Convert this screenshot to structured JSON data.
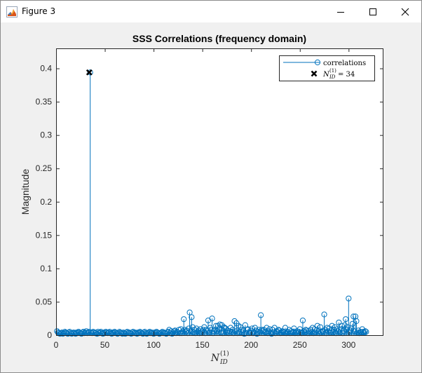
{
  "window": {
    "title": "Figure 3",
    "icons": {
      "app": "matlab-figure-icon",
      "minimize": "minimize-icon",
      "maximize": "maximize-icon",
      "close": "close-icon"
    }
  },
  "chart_data": {
    "type": "stem",
    "title": "SSS Correlations (frequency domain)",
    "ylabel": "Magnitude",
    "xlabel_base": "N",
    "xlabel_sup": "(1)",
    "xlabel_sub": "ID",
    "xlim": [
      0,
      335
    ],
    "ylim": [
      0,
      0.43
    ],
    "xticks": [
      0,
      50,
      100,
      150,
      200,
      250,
      300
    ],
    "yticks": [
      0,
      0.05,
      0.1,
      0.15,
      0.2,
      0.25,
      0.3,
      0.35,
      0.4
    ],
    "ytick_labels": [
      "0",
      "0.05",
      "0.1",
      "0.15",
      "0.2",
      "0.25",
      "0.3",
      "0.35",
      "0.4"
    ],
    "series_color": "#0072BD",
    "values": [
      0.006,
      0.004,
      0.003,
      0.002,
      0.003,
      0.004,
      0.002,
      0.003,
      0.005,
      0.004,
      0.003,
      0.002,
      0.004,
      0.005,
      0.003,
      0.002,
      0.003,
      0.004,
      0.003,
      0.002,
      0.004,
      0.003,
      0.005,
      0.004,
      0.003,
      0.002,
      0.004,
      0.005,
      0.003,
      0.004,
      0.006,
      0.003,
      0.004,
      0.005,
      0.394,
      0.004,
      0.003,
      0.005,
      0.004,
      0.003,
      0.004,
      0.002,
      0.005,
      0.003,
      0.004,
      0.005,
      0.003,
      0.002,
      0.004,
      0.003,
      0.005,
      0.004,
      0.003,
      0.004,
      0.005,
      0.003,
      0.002,
      0.004,
      0.003,
      0.005,
      0.004,
      0.003,
      0.002,
      0.003,
      0.005,
      0.004,
      0.003,
      0.002,
      0.004,
      0.003,
      0.002,
      0.004,
      0.005,
      0.003,
      0.004,
      0.003,
      0.002,
      0.004,
      0.005,
      0.003,
      0.004,
      0.003,
      0.002,
      0.004,
      0.003,
      0.005,
      0.004,
      0.003,
      0.002,
      0.004,
      0.005,
      0.003,
      0.002,
      0.003,
      0.004,
      0.005,
      0.003,
      0.004,
      0.003,
      0.002,
      0.004,
      0.003,
      0.005,
      0.004,
      0.003,
      0.002,
      0.003,
      0.004,
      0.005,
      0.003,
      0.004,
      0.003,
      0.002,
      0.004,
      0.005,
      0.008,
      0.003,
      0.006,
      0.002,
      0.004,
      0.006,
      0.007,
      0.003,
      0.005,
      0.004,
      0.008,
      0.003,
      0.009,
      0.003,
      0.006,
      0.024,
      0.008,
      0.005,
      0.007,
      0.003,
      0.01,
      0.034,
      0.006,
      0.027,
      0.012,
      0.004,
      0.008,
      0.003,
      0.01,
      0.005,
      0.007,
      0.003,
      0.009,
      0.004,
      0.006,
      0.008,
      0.012,
      0.003,
      0.008,
      0.006,
      0.022,
      0.004,
      0.011,
      0.008,
      0.025,
      0.003,
      0.006,
      0.008,
      0.014,
      0.006,
      0.014,
      0.009,
      0.016,
      0.004,
      0.015,
      0.003,
      0.012,
      0.011,
      0.01,
      0.004,
      0.007,
      0.003,
      0.006,
      0.011,
      0.005,
      0.008,
      0.003,
      0.021,
      0.006,
      0.018,
      0.003,
      0.014,
      0.004,
      0.012,
      0.008,
      0.004,
      0.007,
      0.002,
      0.015,
      0.003,
      0.008,
      0.009,
      0.003,
      0.004,
      0.007,
      0.01,
      0.003,
      0.004,
      0.011,
      0.007,
      0.002,
      0.005,
      0.008,
      0.005,
      0.03,
      0.008,
      0.006,
      0.008,
      0.005,
      0.004,
      0.011,
      0.003,
      0.006,
      0.009,
      0.004,
      0.002,
      0.008,
      0.004,
      0.011,
      0.003,
      0.006,
      0.005,
      0.008,
      0.007,
      0.003,
      0.004,
      0.006,
      0.005,
      0.004,
      0.011,
      0.003,
      0.005,
      0.004,
      0.008,
      0.003,
      0.006,
      0.004,
      0.005,
      0.01,
      0.003,
      0.004,
      0.006,
      0.003,
      0.005,
      0.009,
      0.004,
      0.003,
      0.022,
      0.006,
      0.004,
      0.008,
      0.007,
      0.003,
      0.006,
      0.003,
      0.008,
      0.004,
      0.011,
      0.003,
      0.009,
      0.004,
      0.007,
      0.014,
      0.006,
      0.003,
      0.012,
      0.004,
      0.006,
      0.005,
      0.031,
      0.008,
      0.003,
      0.011,
      0.006,
      0.01,
      0.004,
      0.007,
      0.014,
      0.004,
      0.008,
      0.012,
      0.003,
      0.009,
      0.006,
      0.019,
      0.004,
      0.009,
      0.014,
      0.003,
      0.006,
      0.015,
      0.024,
      0.008,
      0.012,
      0.055,
      0.005,
      0.007,
      0.01,
      0.017,
      0.028,
      0.006,
      0.028,
      0.021,
      0.004,
      0.007,
      0.003,
      0.005,
      0.004,
      0.009,
      0.005,
      0.004,
      0.006,
      0.005
    ],
    "marker_index": 34,
    "marker_value": 0.394,
    "legend": {
      "location": "top-right",
      "entries": [
        {
          "label": "correlations",
          "marker": "circle"
        },
        {
          "label_base": "N",
          "label_sup": "(1)",
          "label_sub": "ID",
          "label_suffix": " = 34",
          "marker": "cross"
        }
      ]
    },
    "grid": false
  }
}
